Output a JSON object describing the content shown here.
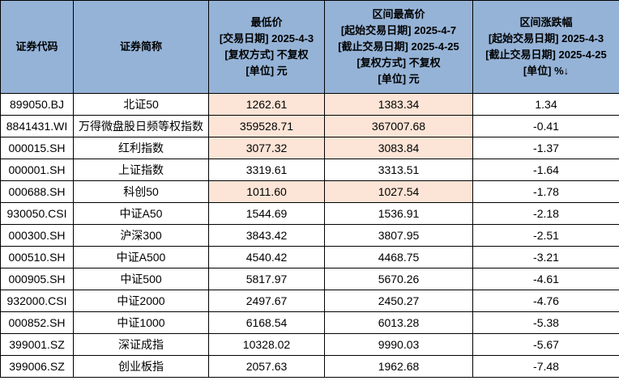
{
  "colors": {
    "header_bg": "#95B3D7",
    "highlight_bg": "#FCE4D6",
    "row_bg": "#FFFFFF",
    "border": "#000000",
    "text": "#000000"
  },
  "table": {
    "columns": [
      {
        "id": "code",
        "label": "证券代码"
      },
      {
        "id": "name",
        "label": "证券简称"
      },
      {
        "id": "low",
        "lines": [
          "最低价",
          "[交易日期] 2025-4-3",
          "[复权方式] 不复权",
          "[单位] 元"
        ]
      },
      {
        "id": "high",
        "lines": [
          "区间最高价",
          "[起始交易日期] 2025-4-7",
          "[截止交易日期] 2025-4-25",
          "[复权方式] 不复权",
          "[单位] 元"
        ]
      },
      {
        "id": "chg",
        "lines": [
          "区间涨跌幅",
          "[起始交易日期] 2025-4-3",
          "[截止交易日期] 2025-4-25",
          "[单位] %↓"
        ]
      }
    ],
    "rows": [
      {
        "code": "899050.BJ",
        "name": "北证50",
        "low": "1262.61",
        "high": "1383.34",
        "chg": "1.34",
        "highlight": true
      },
      {
        "code": "8841431.WI",
        "name": "万得微盘股日频等权指数",
        "low": "359528.71",
        "high": "367007.68",
        "chg": "-0.41",
        "highlight": true
      },
      {
        "code": "000015.SH",
        "name": "红利指数",
        "low": "3077.32",
        "high": "3083.84",
        "chg": "-1.37",
        "highlight": true
      },
      {
        "code": "000001.SH",
        "name": "上证指数",
        "low": "3319.61",
        "high": "3313.51",
        "chg": "-1.64",
        "highlight": false
      },
      {
        "code": "000688.SH",
        "name": "科创50",
        "low": "1011.60",
        "high": "1027.54",
        "chg": "-1.78",
        "highlight": true
      },
      {
        "code": "930050.CSI",
        "name": "中证A50",
        "low": "1544.69",
        "high": "1536.91",
        "chg": "-2.18",
        "highlight": false
      },
      {
        "code": "000300.SH",
        "name": "沪深300",
        "low": "3843.42",
        "high": "3807.95",
        "chg": "-2.51",
        "highlight": false
      },
      {
        "code": "000510.SH",
        "name": "中证A500",
        "low": "4540.42",
        "high": "4468.75",
        "chg": "-3.21",
        "highlight": false
      },
      {
        "code": "000905.SH",
        "name": "中证500",
        "low": "5817.97",
        "high": "5670.26",
        "chg": "-4.61",
        "highlight": false
      },
      {
        "code": "932000.CSI",
        "name": "中证2000",
        "low": "2497.67",
        "high": "2450.27",
        "chg": "-4.76",
        "highlight": false
      },
      {
        "code": "000852.SH",
        "name": "中证1000",
        "low": "6168.54",
        "high": "6013.28",
        "chg": "-5.38",
        "highlight": false
      },
      {
        "code": "399001.SZ",
        "name": "深证成指",
        "low": "10328.02",
        "high": "9990.03",
        "chg": "-5.67",
        "highlight": false
      },
      {
        "code": "399006.SZ",
        "name": "创业板指",
        "low": "2057.63",
        "high": "1962.68",
        "chg": "-7.48",
        "highlight": false
      }
    ]
  },
  "chart_data": {
    "type": "table",
    "columns": [
      "证券代码",
      "证券简称",
      "最低价 [交易日期] 2025-4-3 [复权方式] 不复权 [单位] 元",
      "区间最高价 [起始交易日期] 2025-4-7 [截止交易日期] 2025-4-25 [复权方式] 不复权 [单位] 元",
      "区间涨跌幅 [起始交易日期] 2025-4-3 [截止交易日期] 2025-4-25 [单位] %↓"
    ],
    "rows": [
      [
        "899050.BJ",
        "北证50",
        1262.61,
        1383.34,
        1.34
      ],
      [
        "8841431.WI",
        "万得微盘股日频等权指数",
        359528.71,
        367007.68,
        -0.41
      ],
      [
        "000015.SH",
        "红利指数",
        3077.32,
        3083.84,
        -1.37
      ],
      [
        "000001.SH",
        "上证指数",
        3319.61,
        3313.51,
        -1.64
      ],
      [
        "000688.SH",
        "科创50",
        1011.6,
        1027.54,
        -1.78
      ],
      [
        "930050.CSI",
        "中证A50",
        1544.69,
        1536.91,
        -2.18
      ],
      [
        "000300.SH",
        "沪深300",
        3843.42,
        3807.95,
        -2.51
      ],
      [
        "000510.SH",
        "中证A500",
        4540.42,
        4468.75,
        -3.21
      ],
      [
        "000905.SH",
        "中证500",
        5817.97,
        5670.26,
        -4.61
      ],
      [
        "932000.CSI",
        "中证2000",
        2497.67,
        2450.27,
        -4.76
      ],
      [
        "000852.SH",
        "中证1000",
        6168.54,
        6013.28,
        -5.38
      ],
      [
        "399001.SZ",
        "深证成指",
        10328.02,
        9990.03,
        -5.67
      ],
      [
        "399006.SZ",
        "创业板指",
        2057.63,
        1962.68,
        -7.48
      ]
    ],
    "sorted_by": "区间涨跌幅 descending",
    "layout": {
      "header_background": "#95B3D7",
      "highlighted_cells_background": "#FCE4D6",
      "highlighted_rows_low_high_columns": [
        0,
        1,
        2,
        4
      ],
      "grid": true
    }
  }
}
